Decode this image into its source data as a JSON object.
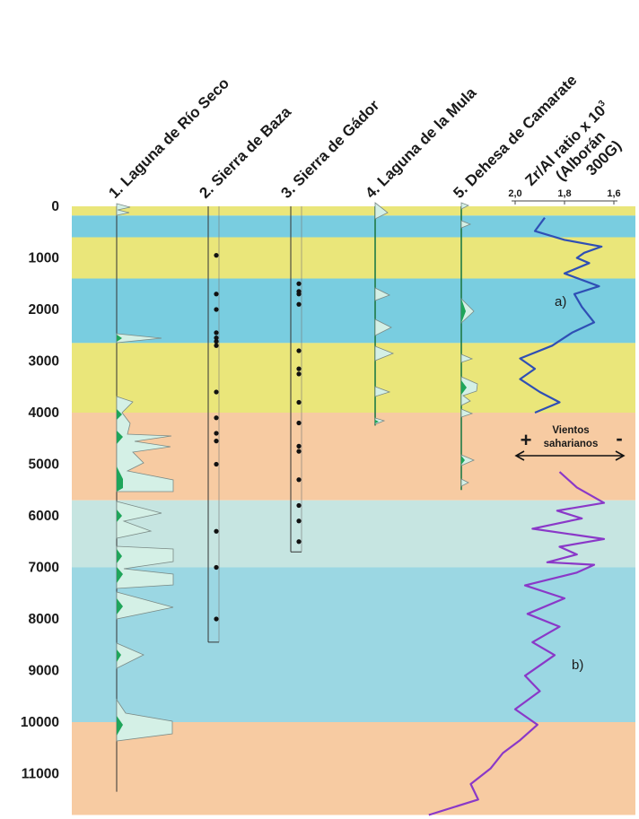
{
  "columns": [
    {
      "label": "1. Laguna de Río Seco"
    },
    {
      "label": "2. Sierra de Baza"
    },
    {
      "label": "3. Sierra de Gádor"
    },
    {
      "label": "4. Laguna de la Mula"
    },
    {
      "label": "5. Dehesa de Camarate"
    }
  ],
  "ratio_header": {
    "line1": "Zr/Al ratio x 10",
    "superscript": "3",
    "line2": "(Alborán",
    "line3": "300G)"
  },
  "ratio_ticks": [
    "2,0",
    "1,8",
    "1,6"
  ],
  "age_ticks": [
    "0",
    "1000",
    "2000",
    "3000",
    "4000",
    "5000",
    "6000",
    "7000",
    "8000",
    "9000",
    "10000",
    "11000"
  ],
  "age_ticks_values": [
    0,
    1000,
    2000,
    3000,
    4000,
    5000,
    6000,
    7000,
    8000,
    9000,
    10000,
    11000
  ],
  "age_range": [
    0,
    11800
  ],
  "bands": [
    {
      "from": 0,
      "to": 180,
      "color": "#eae67a"
    },
    {
      "from": 180,
      "to": 600,
      "color": "#79cde0"
    },
    {
      "from": 600,
      "to": 1400,
      "color": "#eae67a"
    },
    {
      "from": 1400,
      "to": 2650,
      "color": "#79cde0"
    },
    {
      "from": 2650,
      "to": 4000,
      "color": "#eae67a"
    },
    {
      "from": 4000,
      "to": 5700,
      "color": "#f7cba2"
    },
    {
      "from": 5700,
      "to": 7000,
      "color": "#c6e5e1"
    },
    {
      "from": 7000,
      "to": 10000,
      "color": "#9bd7e3"
    },
    {
      "from": 10000,
      "to": 11800,
      "color": "#f7cba2"
    }
  ],
  "dots": {
    "baza": [
      950,
      1700,
      2000,
      2450,
      2550,
      2620,
      2700,
      3600,
      4100,
      4400,
      4550,
      5000,
      6300,
      7000,
      8000
    ],
    "gador": [
      1500,
      1650,
      1700,
      1900,
      2800,
      3150,
      3250,
      3800,
      4200,
      4650,
      4750,
      5300,
      5800,
      6100,
      6500
    ]
  },
  "column_extents": {
    "rio_seco": [
      0,
      11350
    ],
    "baza": [
      0,
      8450
    ],
    "gador": [
      0,
      6700
    ],
    "mula": [
      0,
      4250
    ],
    "camarate": [
      0,
      5500
    ]
  },
  "annotations": {
    "a": "a)",
    "b": "b)",
    "winds_line1": "Vientos",
    "winds_line2": "saharianos",
    "plus": "+",
    "minus": "-"
  },
  "series": [
    {
      "name": "a",
      "color": "#2f4fb5",
      "points": [
        [
          220,
          1.88
        ],
        [
          480,
          1.92
        ],
        [
          650,
          1.8
        ],
        [
          780,
          1.65
        ],
        [
          900,
          1.72
        ],
        [
          1000,
          1.75
        ],
        [
          1100,
          1.7
        ],
        [
          1300,
          1.8
        ],
        [
          1550,
          1.66
        ],
        [
          1700,
          1.76
        ],
        [
          1950,
          1.73
        ],
        [
          2250,
          1.68
        ],
        [
          2450,
          1.77
        ],
        [
          2700,
          1.85
        ],
        [
          2950,
          1.98
        ],
        [
          3150,
          1.92
        ],
        [
          3350,
          1.98
        ],
        [
          3600,
          1.9
        ],
        [
          3800,
          1.82
        ],
        [
          4000,
          1.92
        ]
      ]
    },
    {
      "name": "b",
      "color": "#8a38c8",
      "points": [
        [
          5150,
          1.82
        ],
        [
          5450,
          1.75
        ],
        [
          5750,
          1.64
        ],
        [
          5900,
          1.83
        ],
        [
          6050,
          1.73
        ],
        [
          6250,
          1.93
        ],
        [
          6450,
          1.64
        ],
        [
          6600,
          1.82
        ],
        [
          6750,
          1.75
        ],
        [
          6900,
          1.87
        ],
        [
          6950,
          1.68
        ],
        [
          7100,
          1.75
        ],
        [
          7350,
          1.96
        ],
        [
          7600,
          1.8
        ],
        [
          7900,
          1.95
        ],
        [
          8150,
          1.82
        ],
        [
          8450,
          1.93
        ],
        [
          8700,
          1.84
        ],
        [
          9100,
          1.96
        ],
        [
          9400,
          1.9
        ],
        [
          9750,
          2.0
        ],
        [
          10050,
          1.91
        ],
        [
          10350,
          1.98
        ],
        [
          10600,
          2.05
        ],
        [
          10900,
          2.1
        ],
        [
          11200,
          2.18
        ],
        [
          11500,
          2.15
        ],
        [
          11800,
          2.35
        ]
      ]
    }
  ]
}
